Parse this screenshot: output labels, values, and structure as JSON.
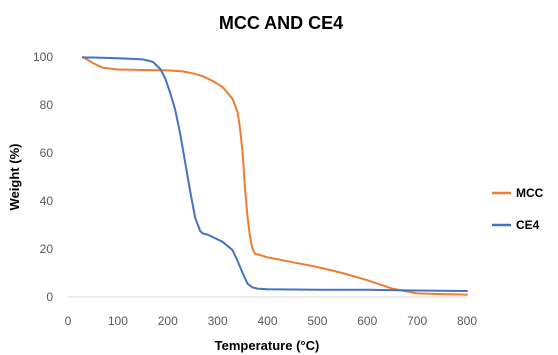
{
  "chart_data": {
    "type": "line",
    "title": "MCC AND CE4",
    "xlabel": "Temperature (°C)",
    "ylabel": "Weight (%)",
    "xlim": [
      0,
      800
    ],
    "ylim": [
      0,
      100
    ],
    "xticks": [
      0,
      100,
      200,
      300,
      400,
      500,
      600,
      700,
      800
    ],
    "yticks": [
      0,
      20,
      40,
      60,
      80,
      100
    ],
    "grid": false,
    "legend_position": "right",
    "series": [
      {
        "name": "MCC",
        "color": "#ED7D31",
        "x": [
          30,
          50,
          70,
          100,
          150,
          200,
          230,
          250,
          270,
          290,
          310,
          330,
          340,
          345,
          350,
          355,
          360,
          365,
          370,
          375,
          385,
          400,
          450,
          500,
          550,
          600,
          650,
          700,
          750,
          800
        ],
        "y": [
          100,
          97.5,
          95.5,
          94.8,
          94.6,
          94.4,
          94,
          93.2,
          92,
          90,
          87.5,
          82.5,
          77,
          70,
          60,
          45,
          33,
          25,
          20,
          18,
          17.5,
          16.5,
          14.5,
          12.5,
          10,
          7,
          3.5,
          1.5,
          1.2,
          1
        ],
        "stroke_width": 2
      },
      {
        "name": "CE4",
        "color": "#4472C4",
        "x": [
          30,
          50,
          100,
          150,
          170,
          185,
          195,
          205,
          215,
          225,
          235,
          245,
          255,
          265,
          270,
          280,
          290,
          310,
          330,
          340,
          350,
          360,
          370,
          380,
          400,
          500,
          600,
          700,
          800
        ],
        "y": [
          99.8,
          99.8,
          99.5,
          99,
          98,
          95,
          91,
          85,
          78,
          68,
          56,
          44,
          33,
          27.5,
          26.5,
          26,
          25,
          23,
          19.5,
          15,
          10,
          5.5,
          4,
          3.5,
          3.2,
          3,
          3,
          2.7,
          2.5
        ],
        "stroke_width": 2
      }
    ]
  }
}
